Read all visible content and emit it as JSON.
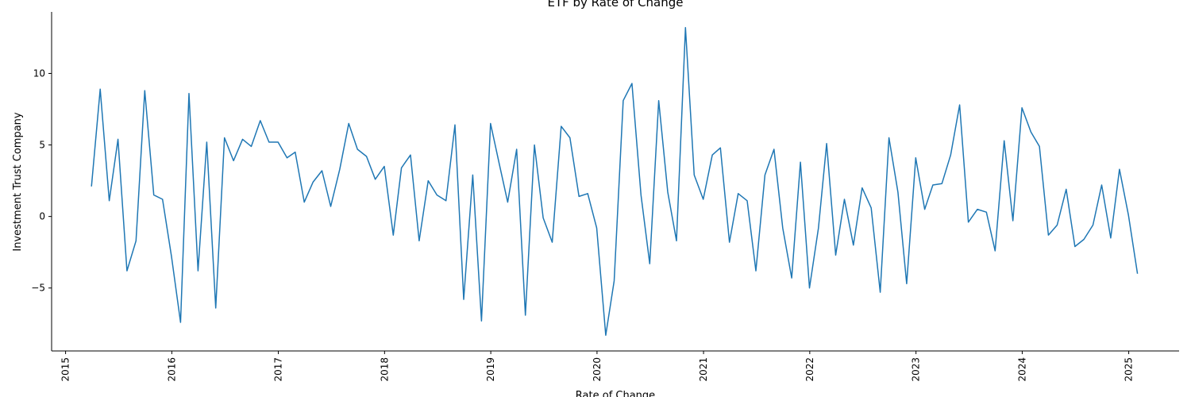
{
  "chart_data": {
    "type": "line",
    "title": "ETF by Rate of Change",
    "xlabel": "Rate of Change",
    "ylabel": "Investment Trust Company",
    "x_axis_type": "date",
    "xlim": [
      "2014-11-14",
      "2025-06-23"
    ],
    "ylim": [
      -9.4,
      14.3
    ],
    "x_ticks": [
      "2015",
      "2016",
      "2017",
      "2018",
      "2019",
      "2020",
      "2021",
      "2022",
      "2023",
      "2024",
      "2025"
    ],
    "y_ticks": [
      -5,
      0,
      5,
      10
    ],
    "y_tick_labels": [
      "−5",
      "0",
      "5",
      "10"
    ],
    "grid": false,
    "legend": null,
    "line_color": "#1f77b4",
    "series": [
      {
        "x": [
          "2015-03-31",
          "2015-04-30",
          "2015-05-31",
          "2015-06-30",
          "2015-07-31",
          "2015-08-31",
          "2015-09-30",
          "2015-10-31",
          "2015-11-30",
          "2015-12-31",
          "2016-01-31",
          "2016-02-29",
          "2016-03-31",
          "2016-04-30",
          "2016-05-31",
          "2016-06-30",
          "2016-07-31",
          "2016-08-31",
          "2016-09-30",
          "2016-10-31",
          "2016-11-30",
          "2016-12-31",
          "2017-01-31",
          "2017-02-28",
          "2017-03-31",
          "2017-04-30",
          "2017-05-31",
          "2017-06-30",
          "2017-07-31",
          "2017-08-31",
          "2017-09-30",
          "2017-10-31",
          "2017-11-30",
          "2017-12-31",
          "2018-01-31",
          "2018-02-28",
          "2018-03-31",
          "2018-04-30",
          "2018-05-31",
          "2018-06-30",
          "2018-07-31",
          "2018-08-31",
          "2018-09-30",
          "2018-10-31",
          "2018-11-30",
          "2018-12-31",
          "2019-01-31",
          "2019-02-28",
          "2019-03-31",
          "2019-04-30",
          "2019-05-31",
          "2019-06-30",
          "2019-07-31",
          "2019-08-31",
          "2019-09-30",
          "2019-10-31",
          "2019-11-30",
          "2019-12-31",
          "2020-01-31",
          "2020-02-29",
          "2020-03-31",
          "2020-04-30",
          "2020-05-31",
          "2020-06-30",
          "2020-07-31",
          "2020-08-31",
          "2020-09-30",
          "2020-10-31",
          "2020-11-30",
          "2020-12-31",
          "2021-01-31",
          "2021-02-28",
          "2021-03-31",
          "2021-04-30",
          "2021-05-31",
          "2021-06-30",
          "2021-07-31",
          "2021-08-31",
          "2021-09-30",
          "2021-10-31",
          "2021-11-30",
          "2021-12-31",
          "2022-01-31",
          "2022-02-28",
          "2022-03-31",
          "2022-04-30",
          "2022-05-31",
          "2022-06-30",
          "2022-07-31",
          "2022-08-31",
          "2022-09-30",
          "2022-10-31",
          "2022-11-30",
          "2022-12-31",
          "2023-01-31",
          "2023-02-28",
          "2023-03-31",
          "2023-04-30",
          "2023-05-31",
          "2023-06-30",
          "2023-07-31",
          "2023-08-31",
          "2023-09-30",
          "2023-10-31",
          "2023-11-30",
          "2023-12-31",
          "2024-01-31",
          "2024-02-29",
          "2024-03-31",
          "2024-04-30",
          "2024-05-31",
          "2024-06-30",
          "2024-07-31",
          "2024-08-31",
          "2024-09-30",
          "2024-10-31",
          "2024-11-30",
          "2024-12-31",
          "2025-01-31"
        ],
        "y": [
          2.1,
          8.9,
          1.1,
          5.4,
          -3.8,
          -1.7,
          8.8,
          1.5,
          1.2,
          -2.8,
          -7.4,
          8.6,
          -3.8,
          5.2,
          -6.4,
          5.5,
          3.9,
          5.4,
          4.9,
          6.7,
          5.2,
          5.2,
          4.1,
          4.5,
          1.0,
          2.4,
          3.2,
          0.7,
          3.3,
          6.5,
          4.7,
          4.2,
          2.6,
          3.5,
          -1.3,
          3.4,
          4.3,
          -1.7,
          2.5,
          1.5,
          1.1,
          6.4,
          -5.8,
          2.9,
          -7.3,
          6.5,
          3.6,
          1.0,
          4.7,
          -6.9,
          5.0,
          -0.1,
          -1.8,
          6.3,
          5.5,
          1.4,
          1.6,
          -0.8,
          -8.3,
          -4.5,
          8.1,
          9.3,
          1.5,
          -3.3,
          8.1,
          1.7,
          -1.7,
          13.2,
          2.9,
          1.2,
          4.3,
          4.8,
          -1.8,
          1.6,
          1.1,
          -3.8,
          2.9,
          4.7,
          -0.8,
          -4.3,
          3.8,
          -5.0,
          -0.8,
          5.1,
          -2.7,
          1.2,
          -2.0,
          2.0,
          0.6,
          -5.3,
          5.5,
          1.7,
          -4.7,
          4.1,
          0.5,
          2.2,
          2.3,
          4.3,
          7.8,
          -0.4,
          0.5,
          0.3,
          -2.4,
          5.3,
          -0.3,
          7.6,
          5.9,
          4.9,
          -1.3,
          -0.6,
          1.9,
          -2.1,
          -1.6,
          -0.6,
          2.2,
          -1.5,
          3.3,
          0.1,
          -4.0
        ]
      }
    ]
  }
}
